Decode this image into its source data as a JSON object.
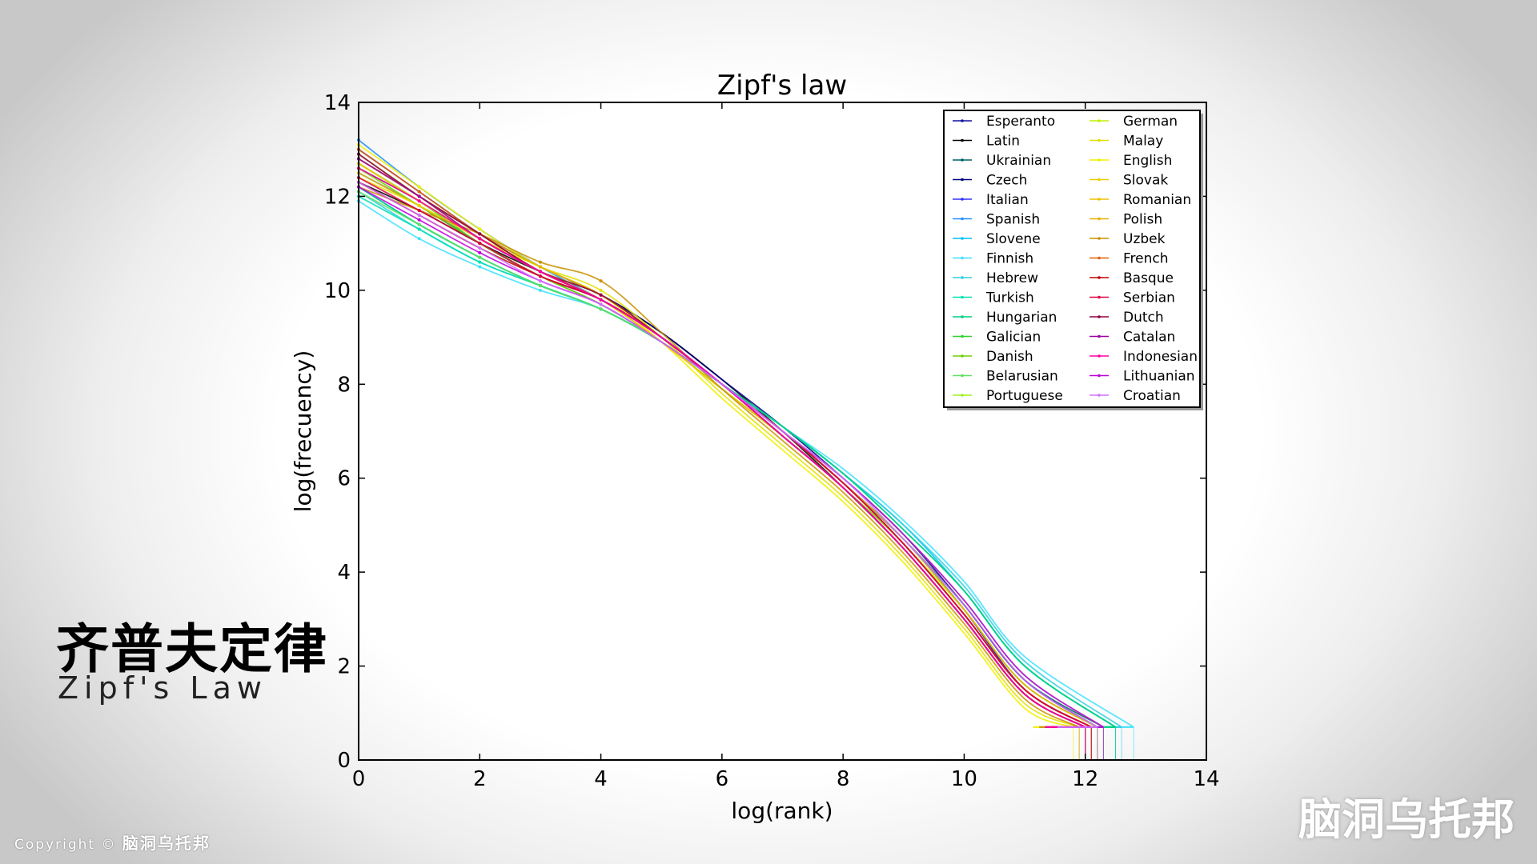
{
  "chart_data": {
    "type": "line",
    "title": "Zipf's law",
    "xlabel": "log(rank)",
    "ylabel": "log(frecuency)",
    "xlim": [
      0,
      14
    ],
    "ylim": [
      0,
      14
    ],
    "xticks": [
      0,
      2,
      4,
      6,
      8,
      10,
      12,
      14
    ],
    "yticks": [
      0,
      2,
      4,
      6,
      8,
      10,
      12,
      14
    ],
    "grid": false,
    "legend_position": "top-right",
    "legend_columns": 2,
    "series": [
      {
        "name": "Esperanto",
        "color": "#1010a0",
        "x": [
          0,
          1,
          2,
          3,
          4,
          5,
          6,
          7,
          8,
          9,
          10,
          11,
          12.1
        ],
        "y": [
          12.5,
          11.8,
          11.0,
          10.3,
          9.8,
          9.0,
          8.0,
          7.0,
          5.9,
          4.7,
          3.2,
          1.5,
          0.7
        ]
      },
      {
        "name": "Latin",
        "color": "#000000",
        "x": [
          0,
          1,
          2,
          3,
          4,
          5,
          6,
          7,
          8,
          9,
          10,
          11,
          12.0
        ],
        "y": [
          12.3,
          11.7,
          11.0,
          10.4,
          9.9,
          9.1,
          8.1,
          7.0,
          5.8,
          4.5,
          3.0,
          1.4,
          0.7
        ]
      },
      {
        "name": "Ukrainian",
        "color": "#006060",
        "x": [
          0,
          1,
          2,
          3,
          4,
          5,
          6,
          7,
          8,
          9,
          10,
          11,
          12.3
        ],
        "y": [
          12.6,
          11.9,
          11.1,
          10.4,
          9.8,
          9.0,
          8.0,
          7.0,
          5.9,
          4.7,
          3.3,
          1.7,
          0.7
        ]
      },
      {
        "name": "Czech",
        "color": "#000080",
        "x": [
          0,
          1,
          2,
          3,
          4,
          5,
          6,
          7,
          8,
          9,
          10,
          11,
          12.2
        ],
        "y": [
          12.8,
          12.0,
          11.2,
          10.5,
          9.9,
          9.1,
          8.1,
          7.1,
          6.0,
          4.8,
          3.3,
          1.7,
          0.7
        ]
      },
      {
        "name": "Italian",
        "color": "#3030ff",
        "x": [
          0,
          1,
          2,
          3,
          4,
          5,
          6,
          7,
          8,
          9,
          10,
          11,
          12.1
        ],
        "y": [
          13.0,
          12.1,
          11.2,
          10.4,
          9.8,
          9.0,
          8.0,
          7.0,
          5.9,
          4.6,
          3.1,
          1.5,
          0.7
        ]
      },
      {
        "name": "Spanish",
        "color": "#2090ff",
        "x": [
          0,
          1,
          2,
          3,
          4,
          5,
          6,
          7,
          8,
          9,
          10,
          11,
          12.2
        ],
        "y": [
          13.2,
          12.2,
          11.3,
          10.5,
          9.8,
          9.0,
          8.0,
          7.0,
          5.9,
          4.7,
          3.2,
          1.6,
          0.7
        ]
      },
      {
        "name": "Slovene",
        "color": "#00c0ff",
        "x": [
          0,
          1,
          2,
          3,
          4,
          5,
          6,
          7,
          8,
          9,
          10,
          11,
          12.5
        ],
        "y": [
          12.2,
          11.4,
          10.7,
          10.1,
          9.6,
          8.9,
          8.0,
          7.1,
          6.1,
          5.0,
          3.6,
          2.0,
          0.7
        ]
      },
      {
        "name": "Finnish",
        "color": "#40e0ff",
        "x": [
          0,
          1,
          2,
          3,
          4,
          5,
          6,
          7,
          8,
          9,
          10,
          11,
          12.8
        ],
        "y": [
          11.9,
          11.1,
          10.5,
          10.0,
          9.6,
          8.9,
          8.0,
          7.1,
          6.2,
          5.1,
          3.8,
          2.2,
          0.7
        ]
      },
      {
        "name": "Hebrew",
        "color": "#30d0e0",
        "x": [
          0,
          1,
          2,
          3,
          4,
          5,
          6,
          7,
          8,
          9,
          10,
          11,
          12.6
        ],
        "y": [
          12.1,
          11.3,
          10.6,
          10.1,
          9.6,
          8.9,
          8.0,
          7.1,
          6.1,
          5.0,
          3.7,
          2.1,
          0.7
        ]
      },
      {
        "name": "Turkish",
        "color": "#00e0b0",
        "x": [
          0,
          1,
          2,
          3,
          4,
          5,
          6,
          7,
          8,
          9,
          10,
          11,
          12.5
        ],
        "y": [
          12.0,
          11.3,
          10.6,
          10.1,
          9.6,
          8.9,
          8.0,
          7.1,
          6.1,
          4.9,
          3.6,
          2.0,
          0.7
        ]
      },
      {
        "name": "Hungarian",
        "color": "#00d080",
        "x": [
          0,
          1,
          2,
          3,
          4,
          5,
          6,
          7,
          8,
          9,
          10,
          11,
          12.5
        ],
        "y": [
          12.2,
          11.4,
          10.7,
          10.1,
          9.6,
          8.9,
          8.0,
          7.1,
          6.1,
          4.9,
          3.6,
          2.0,
          0.7
        ]
      },
      {
        "name": "Galician",
        "color": "#30d030",
        "x": [
          0,
          1,
          2,
          3,
          4,
          5,
          6,
          7,
          8,
          9,
          10,
          11,
          12.0
        ],
        "y": [
          12.7,
          11.9,
          11.0,
          10.3,
          9.7,
          8.9,
          7.9,
          6.9,
          5.8,
          4.5,
          3.0,
          1.4,
          0.7
        ]
      },
      {
        "name": "Danish",
        "color": "#70d000",
        "x": [
          0,
          1,
          2,
          3,
          4,
          5,
          6,
          7,
          8,
          9,
          10,
          11,
          12.1
        ],
        "y": [
          12.6,
          11.8,
          11.0,
          10.3,
          9.7,
          8.9,
          7.9,
          6.9,
          5.8,
          4.6,
          3.1,
          1.5,
          0.7
        ]
      },
      {
        "name": "Belarusian",
        "color": "#60e060",
        "x": [
          0,
          1,
          2,
          3,
          4,
          5,
          6,
          7,
          8,
          9,
          10,
          11,
          12.3
        ],
        "y": [
          12.1,
          11.4,
          10.7,
          10.1,
          9.6,
          8.9,
          8.0,
          7.0,
          6.0,
          4.8,
          3.4,
          1.8,
          0.7
        ]
      },
      {
        "name": "Portuguese",
        "color": "#a0f020",
        "x": [
          0,
          1,
          2,
          3,
          4,
          5,
          6,
          7,
          8,
          9,
          10,
          11,
          12.0
        ],
        "y": [
          12.9,
          12.0,
          11.1,
          10.4,
          9.8,
          8.9,
          7.9,
          6.9,
          5.8,
          4.5,
          3.0,
          1.4,
          0.7
        ]
      },
      {
        "name": "German",
        "color": "#c0f000",
        "x": [
          0,
          1,
          2,
          3,
          4,
          5,
          6,
          7,
          8,
          9,
          10,
          11,
          12.2
        ],
        "y": [
          12.7,
          11.9,
          11.1,
          10.4,
          9.8,
          9.0,
          8.0,
          7.0,
          5.9,
          4.6,
          3.2,
          1.6,
          0.7
        ]
      },
      {
        "name": "Malay",
        "color": "#e0e000",
        "x": [
          0,
          1,
          2,
          3,
          4,
          5,
          6,
          7,
          8,
          9,
          10,
          11,
          11.9
        ],
        "y": [
          12.4,
          11.8,
          11.1,
          10.5,
          10.0,
          9.0,
          7.8,
          6.7,
          5.6,
          4.3,
          2.8,
          1.2,
          0.7
        ]
      },
      {
        "name": "English",
        "color": "#f0f000",
        "x": [
          0,
          1,
          2,
          3,
          4,
          5,
          6,
          7,
          8,
          9,
          10,
          11,
          11.8
        ],
        "y": [
          13.1,
          12.2,
          11.3,
          10.5,
          9.9,
          8.9,
          7.7,
          6.6,
          5.5,
          4.2,
          2.7,
          1.1,
          0.7
        ]
      },
      {
        "name": "Slovak",
        "color": "#e8d000",
        "x": [
          0,
          1,
          2,
          3,
          4,
          5,
          6,
          7,
          8,
          9,
          10,
          11,
          12.1
        ],
        "y": [
          12.5,
          11.8,
          11.1,
          10.4,
          9.9,
          9.0,
          8.0,
          7.0,
          5.9,
          4.6,
          3.1,
          1.5,
          0.7
        ]
      },
      {
        "name": "Romanian",
        "color": "#f0c000",
        "x": [
          0,
          1,
          2,
          3,
          4,
          5,
          6,
          7,
          8,
          9,
          10,
          11,
          12.0
        ],
        "y": [
          12.7,
          11.9,
          11.1,
          10.4,
          9.8,
          8.9,
          7.9,
          6.9,
          5.8,
          4.5,
          3.0,
          1.4,
          0.7
        ]
      },
      {
        "name": "Polish",
        "color": "#e8b000",
        "x": [
          0,
          1,
          2,
          3,
          4,
          5,
          6,
          7,
          8,
          9,
          10,
          11,
          12.2
        ],
        "y": [
          12.8,
          12.0,
          11.2,
          10.5,
          9.9,
          9.0,
          8.0,
          7.0,
          5.9,
          4.7,
          3.2,
          1.6,
          0.7
        ]
      },
      {
        "name": "Uzbek",
        "color": "#c89000",
        "x": [
          0,
          1,
          2,
          3,
          4,
          5,
          6,
          7,
          8,
          9,
          10,
          11,
          11.9
        ],
        "y": [
          12.2,
          11.7,
          11.2,
          10.6,
          10.2,
          9.1,
          7.9,
          6.8,
          5.7,
          4.4,
          2.9,
          1.3,
          0.7
        ]
      },
      {
        "name": "French",
        "color": "#e06000",
        "x": [
          0,
          1,
          2,
          3,
          4,
          5,
          6,
          7,
          8,
          9,
          10,
          11,
          12.0
        ],
        "y": [
          13.0,
          12.1,
          11.2,
          10.4,
          9.8,
          9.0,
          8.0,
          6.9,
          5.8,
          4.5,
          3.0,
          1.4,
          0.7
        ]
      },
      {
        "name": "Basque",
        "color": "#c00000",
        "x": [
          0,
          1,
          2,
          3,
          4,
          5,
          6,
          7,
          8,
          9,
          10,
          11,
          12.1
        ],
        "y": [
          12.3,
          11.6,
          10.9,
          10.3,
          9.8,
          9.0,
          8.0,
          7.0,
          5.9,
          4.6,
          3.1,
          1.5,
          0.7
        ]
      },
      {
        "name": "Serbian",
        "color": "#e00040",
        "x": [
          0,
          1,
          2,
          3,
          4,
          5,
          6,
          7,
          8,
          9,
          10,
          11,
          12.1
        ],
        "y": [
          12.4,
          11.7,
          11.0,
          10.3,
          9.8,
          9.0,
          8.0,
          7.0,
          5.9,
          4.6,
          3.1,
          1.5,
          0.7
        ]
      },
      {
        "name": "Dutch",
        "color": "#900040",
        "x": [
          0,
          1,
          2,
          3,
          4,
          5,
          6,
          7,
          8,
          9,
          10,
          11,
          12.0
        ],
        "y": [
          12.9,
          12.0,
          11.2,
          10.4,
          9.9,
          9.0,
          8.0,
          6.9,
          5.8,
          4.5,
          3.0,
          1.4,
          0.7
        ]
      },
      {
        "name": "Catalan",
        "color": "#a000a0",
        "x": [
          0,
          1,
          2,
          3,
          4,
          5,
          6,
          7,
          8,
          9,
          10,
          11,
          12.0
        ],
        "y": [
          12.8,
          12.0,
          11.1,
          10.4,
          9.8,
          9.0,
          8.0,
          6.9,
          5.8,
          4.5,
          3.0,
          1.4,
          0.7
        ]
      },
      {
        "name": "Indonesian",
        "color": "#ff00a0",
        "x": [
          0,
          1,
          2,
          3,
          4,
          5,
          6,
          7,
          8,
          9,
          10,
          11,
          12.0
        ],
        "y": [
          12.6,
          11.9,
          11.1,
          10.4,
          9.8,
          9.0,
          8.0,
          6.9,
          5.8,
          4.5,
          3.0,
          1.4,
          0.7
        ]
      },
      {
        "name": "Lithuanian",
        "color": "#c000e0",
        "x": [
          0,
          1,
          2,
          3,
          4,
          5,
          6,
          7,
          8,
          9,
          10,
          11,
          12.3
        ],
        "y": [
          12.2,
          11.5,
          10.8,
          10.2,
          9.7,
          8.9,
          8.0,
          7.0,
          6.0,
          4.8,
          3.4,
          1.8,
          0.7
        ]
      },
      {
        "name": "Croatian",
        "color": "#d070ff",
        "x": [
          0,
          1,
          2,
          3,
          4,
          5,
          6,
          7,
          8,
          9,
          10,
          11,
          12.2
        ],
        "y": [
          12.3,
          11.6,
          10.9,
          10.2,
          9.7,
          8.9,
          8.0,
          7.0,
          6.0,
          4.7,
          3.3,
          1.7,
          0.7
        ]
      }
    ]
  },
  "caption": {
    "chinese_title": "齐普夫定律",
    "english_title": "Zipf's Law"
  },
  "footer": {
    "copyright_text": "Copyright",
    "copyright_symbol": "©",
    "copyright_brand": "脑洞乌托邦",
    "brand_watermark": "脑洞乌托邦"
  }
}
